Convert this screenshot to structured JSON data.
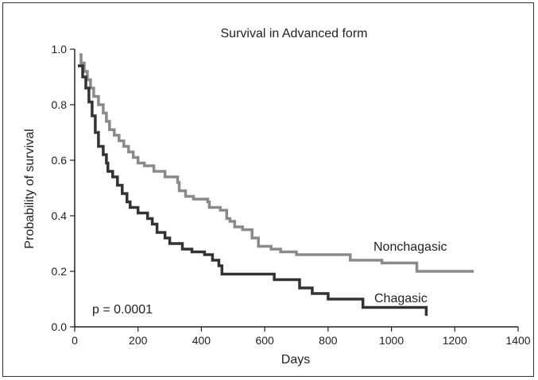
{
  "chart_data": {
    "type": "line",
    "title": "Survival in Advanced form",
    "xlabel": "Days",
    "ylabel": "Probability of survival",
    "xlim": [
      0,
      1400
    ],
    "ylim": [
      0,
      1.0
    ],
    "xticks": [
      "0",
      "200",
      "400",
      "600",
      "800",
      "1000",
      "1200",
      "1400"
    ],
    "yticks": [
      "0.0",
      "0.2",
      "0.4",
      "0.6",
      "0.8",
      "1.0"
    ],
    "grid": false,
    "annotation": "p = 0.0001",
    "series": [
      {
        "name": "Nonchagasic",
        "color": "#8a8a8a",
        "step": true,
        "points": [
          [
            15,
            0.98
          ],
          [
            20,
            0.95
          ],
          [
            30,
            0.92
          ],
          [
            40,
            0.89
          ],
          [
            50,
            0.86
          ],
          [
            60,
            0.83
          ],
          [
            75,
            0.8
          ],
          [
            90,
            0.77
          ],
          [
            100,
            0.74
          ],
          [
            110,
            0.71
          ],
          [
            125,
            0.69
          ],
          [
            140,
            0.67
          ],
          [
            155,
            0.65
          ],
          [
            170,
            0.63
          ],
          [
            185,
            0.61
          ],
          [
            200,
            0.59
          ],
          [
            220,
            0.58
          ],
          [
            250,
            0.56
          ],
          [
            285,
            0.54
          ],
          [
            325,
            0.52
          ],
          [
            330,
            0.49
          ],
          [
            350,
            0.47
          ],
          [
            375,
            0.46
          ],
          [
            420,
            0.45
          ],
          [
            425,
            0.43
          ],
          [
            460,
            0.42
          ],
          [
            480,
            0.39
          ],
          [
            490,
            0.38
          ],
          [
            505,
            0.36
          ],
          [
            530,
            0.35
          ],
          [
            560,
            0.32
          ],
          [
            580,
            0.29
          ],
          [
            620,
            0.28
          ],
          [
            650,
            0.27
          ],
          [
            700,
            0.26
          ],
          [
            870,
            0.24
          ],
          [
            970,
            0.23
          ],
          [
            1080,
            0.2
          ],
          [
            1260,
            0.2
          ]
        ]
      },
      {
        "name": "Chagasic",
        "color": "#333333",
        "step": true,
        "points": [
          [
            10,
            0.94
          ],
          [
            25,
            0.9
          ],
          [
            35,
            0.86
          ],
          [
            45,
            0.81
          ],
          [
            55,
            0.76
          ],
          [
            65,
            0.7
          ],
          [
            75,
            0.65
          ],
          [
            90,
            0.62
          ],
          [
            100,
            0.59
          ],
          [
            105,
            0.56
          ],
          [
            120,
            0.54
          ],
          [
            135,
            0.51
          ],
          [
            150,
            0.48
          ],
          [
            165,
            0.45
          ],
          [
            175,
            0.43
          ],
          [
            200,
            0.41
          ],
          [
            230,
            0.39
          ],
          [
            245,
            0.37
          ],
          [
            260,
            0.34
          ],
          [
            285,
            0.32
          ],
          [
            300,
            0.3
          ],
          [
            340,
            0.28
          ],
          [
            370,
            0.27
          ],
          [
            410,
            0.26
          ],
          [
            435,
            0.24
          ],
          [
            455,
            0.22
          ],
          [
            465,
            0.19
          ],
          [
            630,
            0.17
          ],
          [
            710,
            0.14
          ],
          [
            750,
            0.12
          ],
          [
            800,
            0.1
          ],
          [
            910,
            0.07
          ],
          [
            1105,
            0.07
          ],
          [
            1110,
            0.04
          ]
        ]
      }
    ]
  }
}
